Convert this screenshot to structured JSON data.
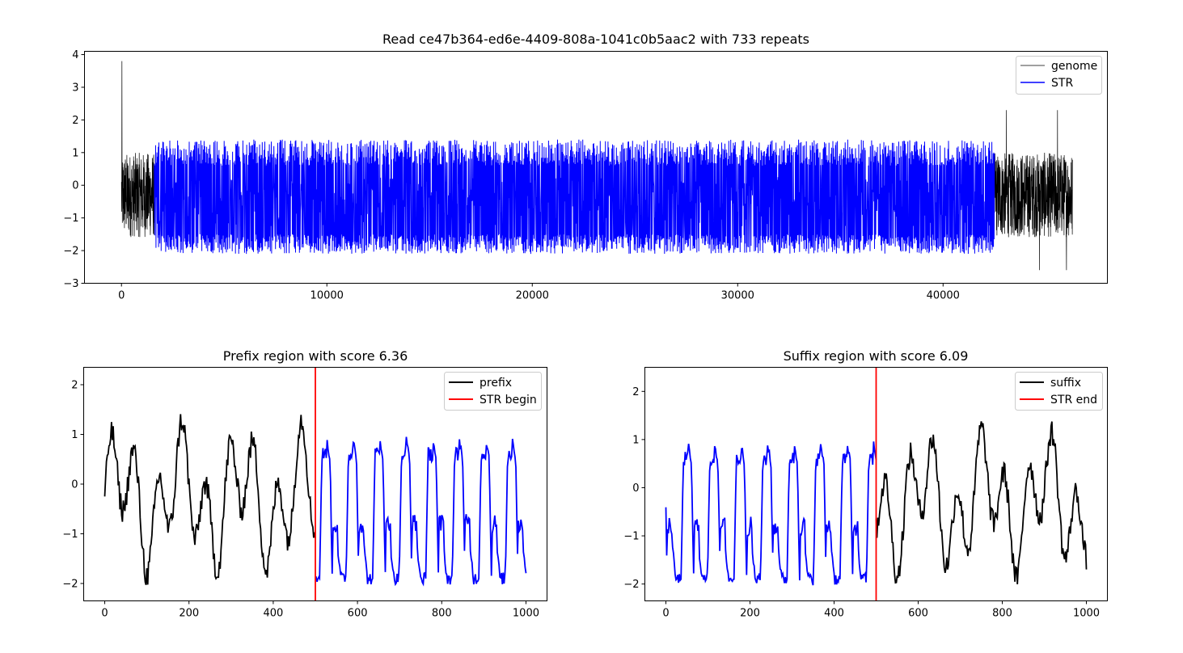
{
  "chart_data": [
    {
      "type": "line",
      "title": "Read ce47b364-ed6e-4409-808a-1041c0b5aac2 with 733 repeats",
      "xlim": [
        -1800,
        48000
      ],
      "ylim": [
        -3,
        4.1
      ],
      "xticks": [
        0,
        10000,
        20000,
        30000,
        40000
      ],
      "yticks": [
        -3,
        -2,
        -1,
        0,
        1,
        2,
        3,
        4
      ],
      "xlabel": "",
      "ylabel": "",
      "legend_position": "top-right",
      "series": [
        {
          "name": "genome",
          "color": "#000000",
          "x_range": [
            0,
            46300
          ],
          "segments": [
            [
              0,
              1600
            ],
            [
              42500,
              46300
            ]
          ],
          "y_range": [
            -2.7,
            3.8
          ]
        },
        {
          "name": "STR",
          "color": "#0000ff",
          "x_range": [
            1600,
            42500
          ],
          "y_range": [
            -2.3,
            1.5
          ]
        }
      ]
    },
    {
      "type": "line",
      "title": "Prefix region with score 6.36",
      "xlim": [
        -50,
        1050
      ],
      "ylim": [
        -2.35,
        2.35
      ],
      "xticks": [
        0,
        200,
        400,
        600,
        800,
        1000
      ],
      "yticks": [
        -2,
        -1,
        0,
        1,
        2
      ],
      "xlabel": "",
      "ylabel": "",
      "legend_position": "top-right",
      "series": [
        {
          "name": "prefix",
          "color": "#000000",
          "x_range": [
            0,
            500
          ]
        },
        {
          "name": "",
          "color": "#0000ff",
          "x_range": [
            500,
            1000
          ]
        }
      ],
      "vline": {
        "name": "STR begin",
        "x": 500,
        "color": "#ff0000"
      }
    },
    {
      "type": "line",
      "title": "Suffix region with score 6.09",
      "xlim": [
        -50,
        1050
      ],
      "ylim": [
        -2.35,
        2.5
      ],
      "xticks": [
        0,
        200,
        400,
        600,
        800,
        1000
      ],
      "yticks": [
        -2,
        -1,
        0,
        1,
        2
      ],
      "xlabel": "",
      "ylabel": "",
      "legend_position": "top-right",
      "series": [
        {
          "name": "suffix",
          "color": "#000000",
          "x_range": [
            500,
            1000
          ]
        },
        {
          "name": "",
          "color": "#0000ff",
          "x_range": [
            0,
            500
          ]
        }
      ],
      "vline": {
        "name": "STR end",
        "x": 500,
        "color": "#ff0000"
      }
    }
  ]
}
